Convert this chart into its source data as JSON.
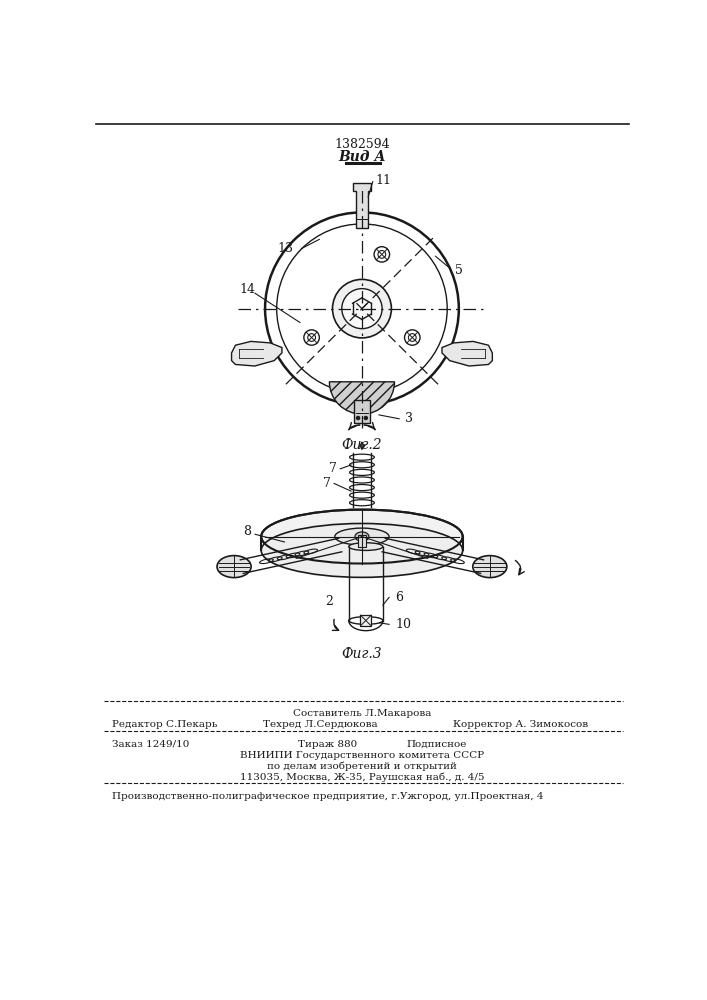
{
  "patent_number": "1382594",
  "view_label": "Вид А",
  "fig2_label": "Фиг.2",
  "fig3_label": "Фиг.3",
  "bg_color": "#ffffff",
  "line_color": "#1a1a1a",
  "footer_line1_left": "Редактор С.Пекарь",
  "footer_line1_center": "Составитель Л.Макарова",
  "footer_line2_center": "Техред Л.Сердюкова",
  "footer_line2_right": "Корректор А. Зимокосов",
  "footer_line3_left": "Заказ 1249/10",
  "footer_line3_center": "Тираж 880",
  "footer_line3_right": "Подписное",
  "footer_line4": "ВНИИПИ Государственного комитета СССР",
  "footer_line5": "по делам изобретений и открытий",
  "footer_line6": "113035, Москва, Ж-35, Раушская наб., д. 4/5",
  "footer_line7": "Производственно-полиграфическое предприятие, г.Ужгород, ул.Проектная, 4"
}
